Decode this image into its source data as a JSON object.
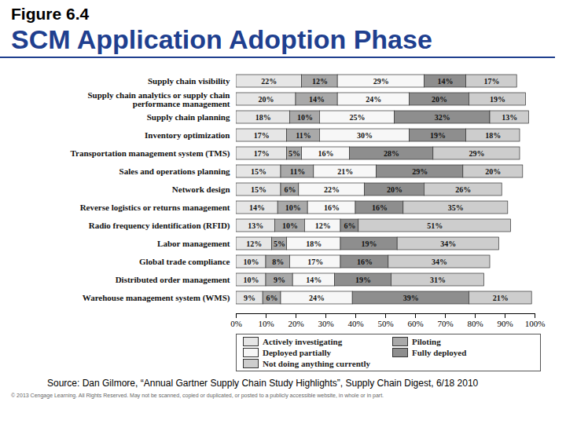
{
  "chart_data": {
    "type": "bar",
    "figure": "Figure 6.4",
    "title": "SCM Application Adoption Phase",
    "source": "Source: Dan Gilmore, “Annual Gartner Supply Chain Study Highlights”, Supply Chain Digest, 6/18 2010",
    "copyright": "© 2013 Cengage Learning. All Rights Reserved. May not be scanned, copied or duplicated, or posted to a publicly accessible website, in whole or in part.",
    "orientation": "horizontal",
    "stacked": true,
    "data_labels": true,
    "legend": "bottom",
    "categories": [
      "Supply chain visibility",
      "Supply chain analytics or supply chain performance management",
      "Supply chain planning",
      "Inventory optimization",
      "Transportation management system (TMS)",
      "Sales and operations planning",
      "Network design",
      "Reverse logistics or returns management",
      "Radio frequency identification (RFID)",
      "Labor management",
      "Global trade compliance",
      "Distributed order management",
      "Warehouse management system (WMS)"
    ],
    "series": [
      {
        "name": "Actively investigating",
        "color": "#e6e6e6",
        "values": [
          22,
          20,
          18,
          17,
          17,
          15,
          15,
          14,
          13,
          12,
          10,
          10,
          9
        ],
        "value_labels": [
          "22%",
          "20%",
          "18%",
          "17%",
          "17%",
          "15%",
          "15%",
          "14%",
          "13%",
          "12%",
          "10%",
          "10%",
          "9%"
        ]
      },
      {
        "name": "Piloting",
        "color": "#a9a9a9",
        "values": [
          12,
          14,
          10,
          11,
          5,
          11,
          6,
          10,
          10,
          5,
          8,
          9,
          6
        ],
        "value_labels": [
          "12%",
          "14%",
          "10%",
          "11%",
          "5%",
          "11%",
          "6%",
          "10%",
          "10%",
          "5%",
          "8%",
          "9%",
          "6%"
        ]
      },
      {
        "name": "Deployed partially",
        "color": "#f7f7f7",
        "values": [
          29,
          24,
          25,
          30,
          16,
          21,
          22,
          16,
          12,
          18,
          17,
          14,
          24
        ],
        "value_labels": [
          "29%",
          "24%",
          "25%",
          "30%",
          "16%",
          "21%",
          "22%",
          "16%",
          "12%",
          "18%",
          "17%",
          "14%",
          "24%"
        ]
      },
      {
        "name": "Fully deployed",
        "color": "#8e8e8e",
        "values": [
          14,
          20,
          32,
          19,
          28,
          29,
          20,
          16,
          6,
          19,
          16,
          19,
          39
        ],
        "value_labels": [
          "14%",
          "20%",
          "32%",
          "19%",
          "28%",
          "29%",
          "20%",
          "16%",
          "6%",
          "19%",
          "16%",
          "19%",
          "39%"
        ]
      },
      {
        "name": "Not doing anything currently",
        "color": "#cdcdcd",
        "values": [
          17,
          19,
          13,
          18,
          29,
          20,
          26,
          35,
          51,
          34,
          34,
          31,
          21
        ],
        "value_labels": [
          "17%",
          "19%",
          "13%",
          "18%",
          "29%",
          "20%",
          "26%",
          "35%",
          "51%",
          "34%",
          "34%",
          "31%",
          "21%"
        ]
      }
    ],
    "xlim": [
      0,
      100
    ],
    "xticks": [
      {
        "value": 0,
        "label": "0%"
      },
      {
        "value": 10,
        "label": "10%"
      },
      {
        "value": 20,
        "label": "20%"
      },
      {
        "value": 30,
        "label": "30%"
      },
      {
        "value": 40,
        "label": "40%"
      },
      {
        "value": 50,
        "label": "50%"
      },
      {
        "value": 60,
        "label": "60%"
      },
      {
        "value": 70,
        "label": "70%"
      },
      {
        "value": 80,
        "label": "80%"
      },
      {
        "value": 90,
        "label": "90%"
      },
      {
        "value": 100,
        "label": "100%"
      }
    ]
  }
}
